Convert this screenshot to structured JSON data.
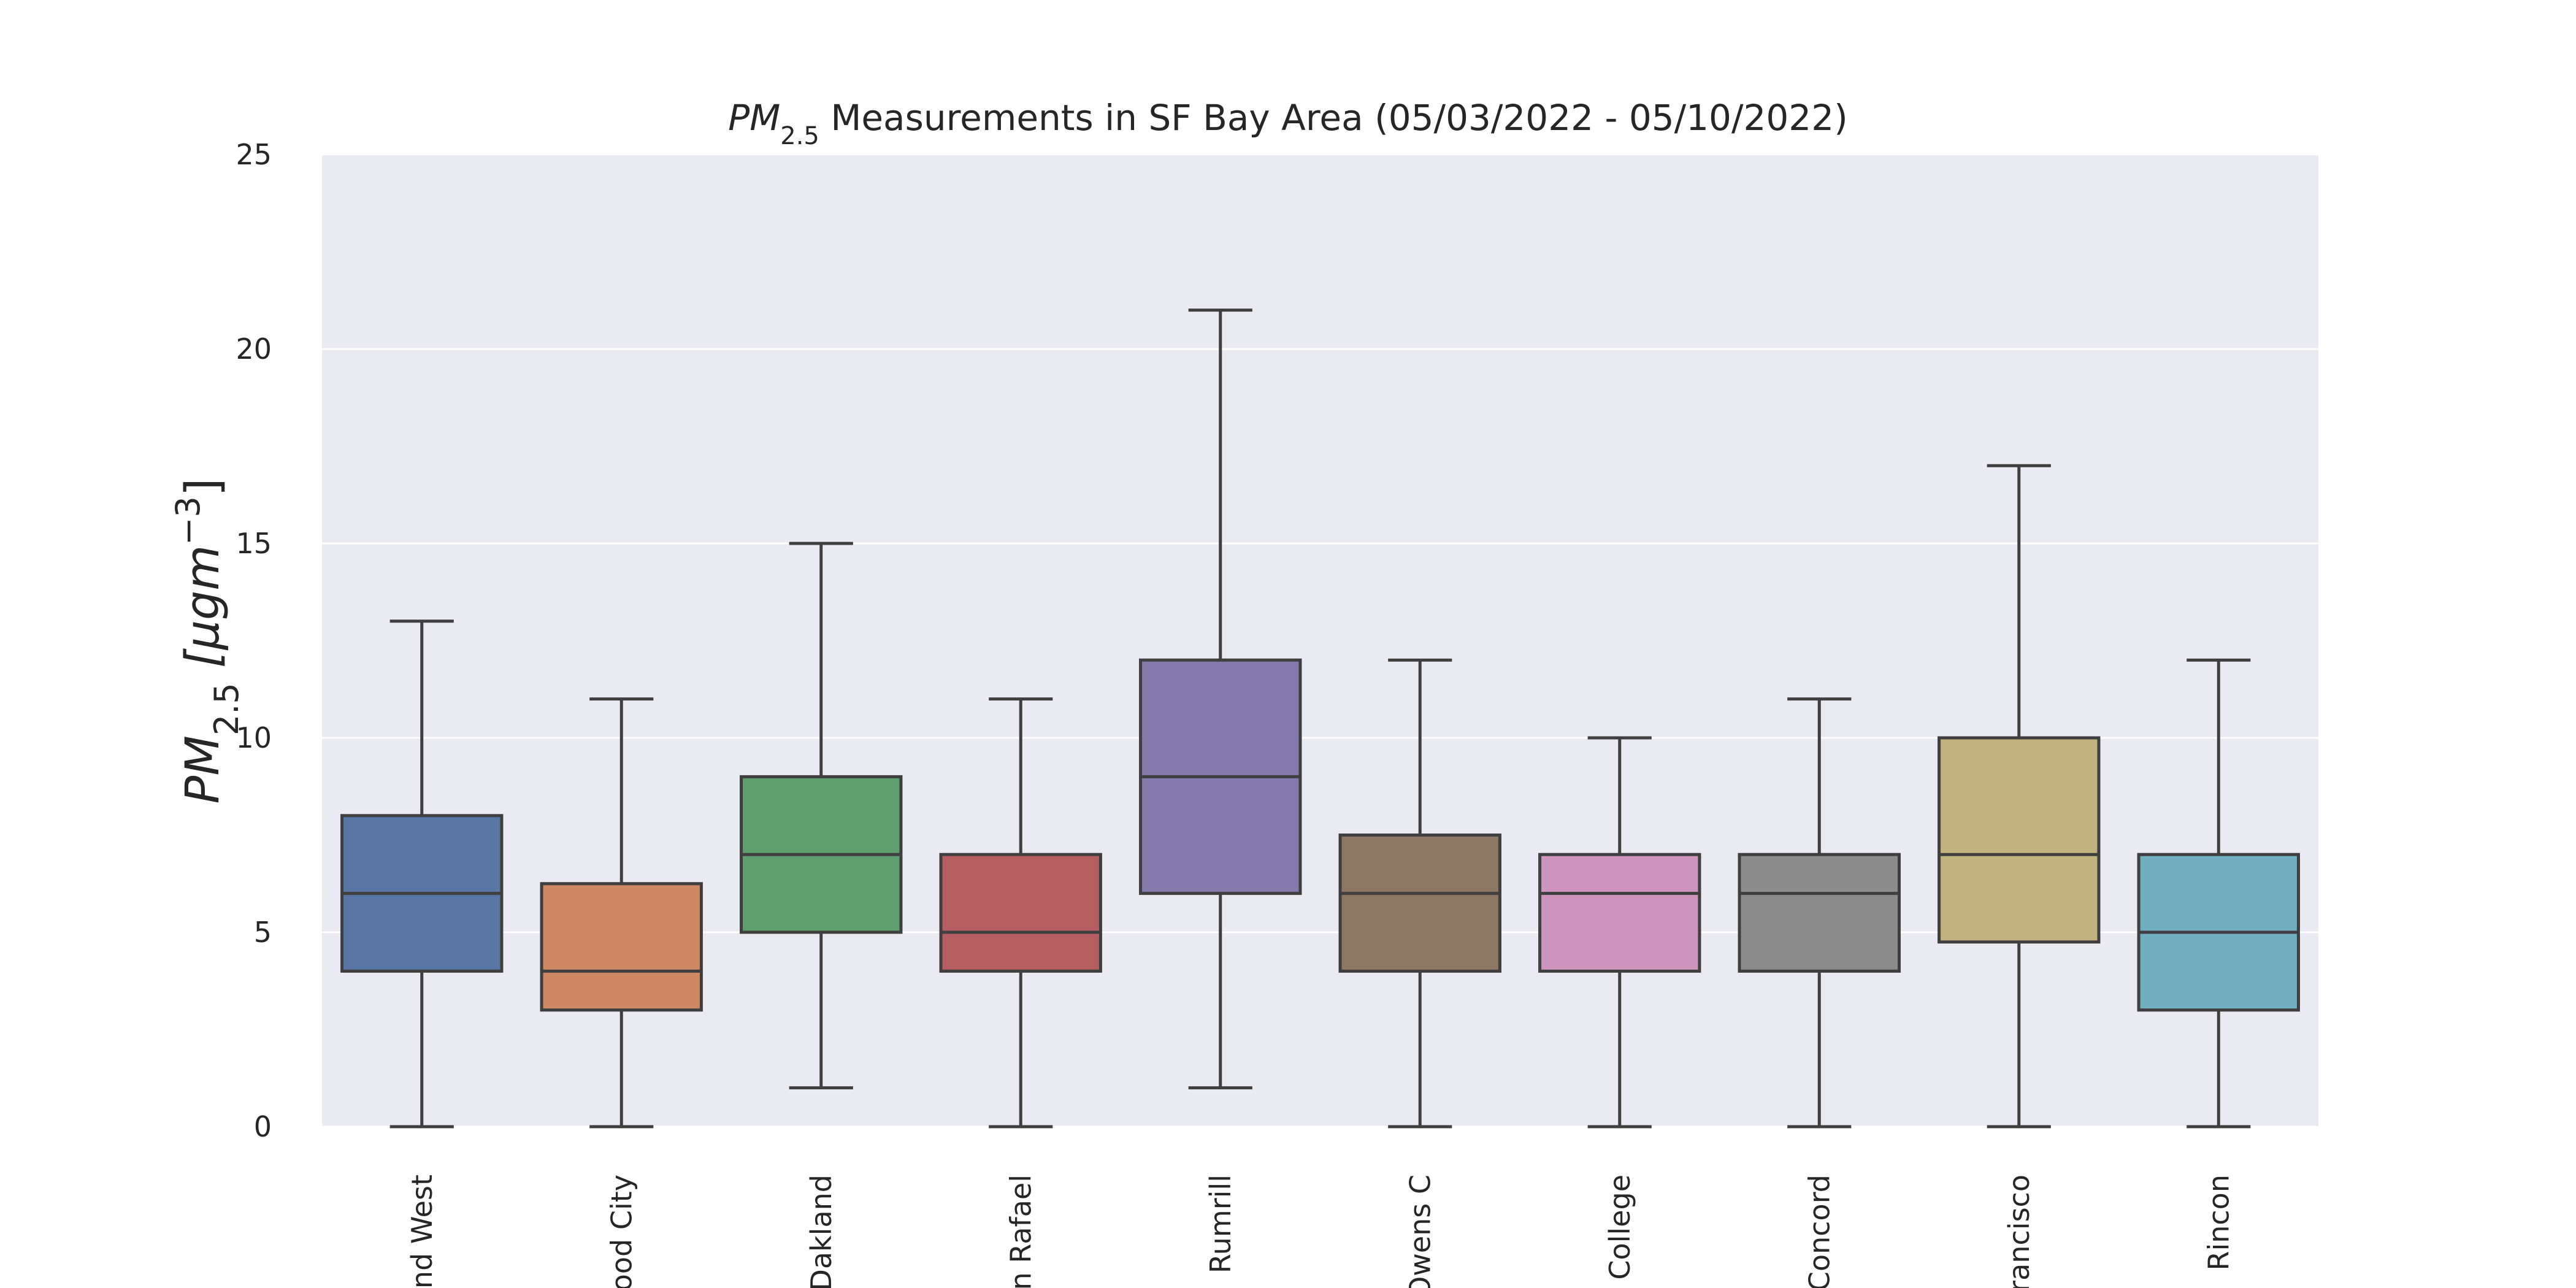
{
  "chart_data": {
    "type": "box",
    "title": {
      "symbol": "PM",
      "subscript": "2.5",
      "rest": " Measurements in SF Bay Area (05/03/2022 - 05/10/2022)"
    },
    "ylabel": {
      "symbol": "PM",
      "subscript": "2.5",
      "unit_open": " [μgm",
      "unit_exp": "−3",
      "unit_close": "]"
    },
    "ylim": [
      0,
      25
    ],
    "yticks": [
      0,
      5,
      10,
      15,
      20,
      25
    ],
    "grid": true,
    "categories": [
      "nd West",
      "ood City",
      "Dakland",
      "n Rafael",
      "Rumrill",
      "Owens C",
      "College",
      "Concord",
      "rancisco",
      "Rincon"
    ],
    "boxes": [
      {
        "whisker_low": 0,
        "q1": 4,
        "median": 6,
        "q3": 8,
        "whisker_high": 13,
        "color": "#5975a4"
      },
      {
        "whisker_low": 0,
        "q1": 3,
        "median": 4,
        "q3": 6.25,
        "whisker_high": 11,
        "color": "#cc8963"
      },
      {
        "whisker_low": 1,
        "q1": 5,
        "median": 7,
        "q3": 9,
        "whisker_high": 15,
        "color": "#5f9e6e"
      },
      {
        "whisker_low": 0,
        "q1": 4,
        "median": 5,
        "q3": 7,
        "whisker_high": 11,
        "color": "#b55d60"
      },
      {
        "whisker_low": 1,
        "q1": 6,
        "median": 9,
        "q3": 12,
        "whisker_high": 21,
        "color": "#857aab"
      },
      {
        "whisker_low": 0,
        "q1": 4,
        "median": 6,
        "q3": 7.5,
        "whisker_high": 12,
        "color": "#8d7866"
      },
      {
        "whisker_low": 0,
        "q1": 4,
        "median": 6,
        "q3": 7,
        "whisker_high": 10,
        "color": "#d095bf"
      },
      {
        "whisker_low": 0,
        "q1": 4,
        "median": 6,
        "q3": 7,
        "whisker_high": 11,
        "color": "#8c8c8c"
      },
      {
        "whisker_low": 0,
        "q1": 4.75,
        "median": 7,
        "q3": 10,
        "whisker_high": 17,
        "color": "#c1b37f"
      },
      {
        "whisker_low": 0,
        "q1": 3,
        "median": 5,
        "q3": 7,
        "whisker_high": 12,
        "color": "#71aec0"
      }
    ],
    "colors": {
      "plot_background": "#eaeaf2",
      "grid": "#ffffff",
      "line": "#3f3f3f"
    }
  }
}
